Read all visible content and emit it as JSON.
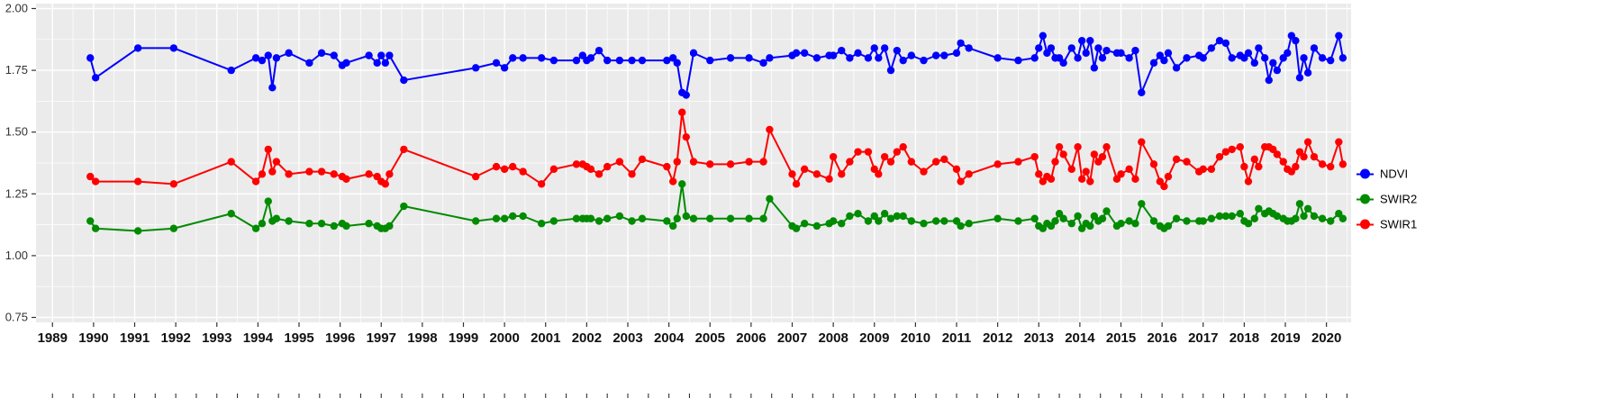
{
  "figure": {
    "background": "#FFFFFF",
    "panel_background": "#EBEBEB",
    "grid_color": "#FFFFFF",
    "tick_color": "#333333"
  },
  "chart_data": {
    "type": "line",
    "title": "",
    "xlabel": "",
    "ylabel": "",
    "legend_position": "right",
    "grid": true,
    "x_range": [
      1988.6,
      2020.6
    ],
    "y_range": [
      0.73,
      2.02
    ],
    "x_ticks": [
      1989,
      1990,
      1991,
      1992,
      1993,
      1994,
      1995,
      1996,
      1997,
      1998,
      1999,
      2000,
      2001,
      2002,
      2003,
      2004,
      2005,
      2006,
      2007,
      2008,
      2009,
      2010,
      2011,
      2012,
      2013,
      2014,
      2015,
      2016,
      2017,
      2018,
      2019,
      2020
    ],
    "y_ticks": [
      0.75,
      1.0,
      1.25,
      1.5,
      1.75,
      2.0
    ],
    "y_tick_labels": [
      "0.75",
      "1.00",
      "1.25",
      "1.50",
      "1.75",
      "2.00"
    ],
    "x": [
      1989.92,
      1990.05,
      1991.08,
      1991.95,
      1993.35,
      1993.95,
      1994.1,
      1994.25,
      1994.35,
      1994.45,
      1994.75,
      1995.25,
      1995.55,
      1995.85,
      1996.05,
      1996.15,
      1996.7,
      1996.9,
      1997.0,
      1997.1,
      1997.2,
      1997.55,
      1999.3,
      1999.8,
      2000.0,
      2000.2,
      2000.45,
      2000.9,
      2001.2,
      2001.75,
      2001.9,
      2002.0,
      2002.1,
      2002.3,
      2002.5,
      2002.8,
      2003.1,
      2003.35,
      2003.95,
      2004.1,
      2004.2,
      2004.32,
      2004.42,
      2004.6,
      2005.0,
      2005.5,
      2005.95,
      2006.3,
      2006.45,
      2007.0,
      2007.1,
      2007.3,
      2007.6,
      2007.9,
      2008.0,
      2008.2,
      2008.4,
      2008.6,
      2008.85,
      2009.0,
      2009.1,
      2009.25,
      2009.4,
      2009.55,
      2009.7,
      2009.9,
      2010.2,
      2010.5,
      2010.7,
      2011.0,
      2011.1,
      2011.3,
      2012.0,
      2012.5,
      2012.9,
      2013.0,
      2013.1,
      2013.2,
      2013.3,
      2013.4,
      2013.5,
      2013.6,
      2013.8,
      2013.95,
      2014.05,
      2014.15,
      2014.25,
      2014.35,
      2014.45,
      2014.55,
      2014.65,
      2014.9,
      2015.0,
      2015.2,
      2015.35,
      2015.5,
      2015.8,
      2015.95,
      2016.05,
      2016.15,
      2016.35,
      2016.6,
      2016.9,
      2017.0,
      2017.2,
      2017.4,
      2017.55,
      2017.7,
      2017.9,
      2018.0,
      2018.1,
      2018.25,
      2018.35,
      2018.5,
      2018.6,
      2018.7,
      2018.8,
      2018.95,
      2019.05,
      2019.15,
      2019.25,
      2019.35,
      2019.45,
      2019.55,
      2019.7,
      2019.9,
      2020.1,
      2020.3,
      2020.4
    ],
    "series": [
      {
        "name": "NDVI",
        "color": "#0000FF",
        "values": [
          1.8,
          1.72,
          1.84,
          1.84,
          1.75,
          1.8,
          1.79,
          1.81,
          1.68,
          1.8,
          1.82,
          1.78,
          1.82,
          1.81,
          1.77,
          1.78,
          1.81,
          1.78,
          1.81,
          1.78,
          1.81,
          1.71,
          1.76,
          1.78,
          1.76,
          1.8,
          1.8,
          1.8,
          1.79,
          1.79,
          1.81,
          1.79,
          1.8,
          1.83,
          1.79,
          1.79,
          1.79,
          1.79,
          1.79,
          1.8,
          1.78,
          1.66,
          1.65,
          1.82,
          1.79,
          1.8,
          1.8,
          1.78,
          1.8,
          1.81,
          1.82,
          1.82,
          1.8,
          1.81,
          1.81,
          1.83,
          1.8,
          1.82,
          1.8,
          1.84,
          1.8,
          1.84,
          1.75,
          1.83,
          1.79,
          1.81,
          1.79,
          1.81,
          1.81,
          1.82,
          1.86,
          1.84,
          1.8,
          1.79,
          1.8,
          1.84,
          1.89,
          1.82,
          1.84,
          1.8,
          1.8,
          1.78,
          1.84,
          1.8,
          1.87,
          1.82,
          1.87,
          1.76,
          1.84,
          1.8,
          1.83,
          1.82,
          1.82,
          1.8,
          1.83,
          1.66,
          1.78,
          1.81,
          1.79,
          1.82,
          1.76,
          1.8,
          1.81,
          1.8,
          1.84,
          1.87,
          1.86,
          1.8,
          1.81,
          1.8,
          1.82,
          1.78,
          1.84,
          1.8,
          1.71,
          1.78,
          1.75,
          1.8,
          1.82,
          1.89,
          1.87,
          1.72,
          1.8,
          1.74,
          1.84,
          1.8,
          1.79,
          1.89,
          1.8
        ]
      },
      {
        "name": "SWIR2",
        "color": "#008B00",
        "values": [
          1.14,
          1.11,
          1.1,
          1.11,
          1.17,
          1.11,
          1.13,
          1.22,
          1.14,
          1.15,
          1.14,
          1.13,
          1.13,
          1.12,
          1.13,
          1.12,
          1.13,
          1.12,
          1.11,
          1.11,
          1.12,
          1.2,
          1.14,
          1.15,
          1.15,
          1.16,
          1.16,
          1.13,
          1.14,
          1.15,
          1.15,
          1.15,
          1.15,
          1.14,
          1.15,
          1.16,
          1.14,
          1.15,
          1.14,
          1.12,
          1.15,
          1.29,
          1.16,
          1.15,
          1.15,
          1.15,
          1.15,
          1.15,
          1.23,
          1.12,
          1.11,
          1.13,
          1.12,
          1.13,
          1.14,
          1.13,
          1.16,
          1.17,
          1.14,
          1.16,
          1.14,
          1.17,
          1.15,
          1.16,
          1.16,
          1.14,
          1.13,
          1.14,
          1.14,
          1.14,
          1.12,
          1.13,
          1.15,
          1.14,
          1.15,
          1.12,
          1.11,
          1.13,
          1.12,
          1.14,
          1.17,
          1.15,
          1.13,
          1.16,
          1.11,
          1.13,
          1.12,
          1.16,
          1.14,
          1.15,
          1.18,
          1.12,
          1.13,
          1.14,
          1.13,
          1.21,
          1.14,
          1.12,
          1.11,
          1.12,
          1.15,
          1.14,
          1.14,
          1.14,
          1.15,
          1.16,
          1.16,
          1.16,
          1.17,
          1.14,
          1.13,
          1.15,
          1.19,
          1.17,
          1.18,
          1.17,
          1.16,
          1.15,
          1.14,
          1.14,
          1.15,
          1.21,
          1.16,
          1.19,
          1.16,
          1.15,
          1.14,
          1.17,
          1.15
        ]
      },
      {
        "name": "SWIR1",
        "color": "#FF0000",
        "values": [
          1.32,
          1.3,
          1.3,
          1.29,
          1.38,
          1.3,
          1.33,
          1.43,
          1.34,
          1.38,
          1.33,
          1.34,
          1.34,
          1.33,
          1.32,
          1.31,
          1.33,
          1.32,
          1.3,
          1.29,
          1.33,
          1.43,
          1.32,
          1.36,
          1.35,
          1.36,
          1.34,
          1.29,
          1.35,
          1.37,
          1.37,
          1.36,
          1.35,
          1.33,
          1.36,
          1.38,
          1.33,
          1.39,
          1.36,
          1.3,
          1.38,
          1.58,
          1.48,
          1.38,
          1.37,
          1.37,
          1.38,
          1.38,
          1.51,
          1.33,
          1.29,
          1.35,
          1.33,
          1.31,
          1.4,
          1.33,
          1.38,
          1.42,
          1.42,
          1.35,
          1.33,
          1.4,
          1.38,
          1.42,
          1.44,
          1.38,
          1.34,
          1.38,
          1.39,
          1.35,
          1.3,
          1.33,
          1.37,
          1.38,
          1.4,
          1.33,
          1.3,
          1.32,
          1.31,
          1.38,
          1.44,
          1.41,
          1.35,
          1.44,
          1.31,
          1.34,
          1.3,
          1.41,
          1.38,
          1.4,
          1.44,
          1.31,
          1.33,
          1.35,
          1.31,
          1.46,
          1.37,
          1.3,
          1.28,
          1.32,
          1.39,
          1.38,
          1.34,
          1.35,
          1.35,
          1.4,
          1.42,
          1.43,
          1.44,
          1.36,
          1.3,
          1.39,
          1.36,
          1.44,
          1.44,
          1.43,
          1.41,
          1.38,
          1.35,
          1.34,
          1.36,
          1.42,
          1.4,
          1.46,
          1.4,
          1.37,
          1.36,
          1.46,
          1.37
        ]
      }
    ]
  }
}
